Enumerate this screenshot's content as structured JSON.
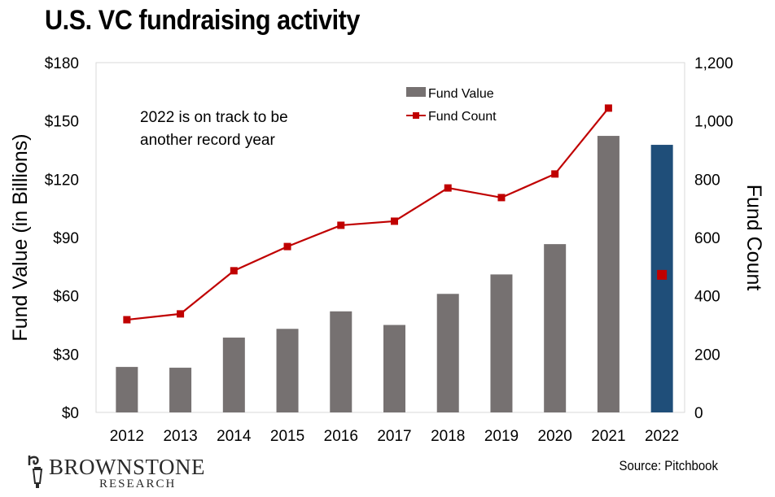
{
  "chart_data": {
    "type": "bar",
    "title": "U.S. VC fundraising activity",
    "categories": [
      "2012",
      "2013",
      "2014",
      "2015",
      "2016",
      "2017",
      "2018",
      "2019",
      "2020",
      "2021",
      "2022"
    ],
    "series": [
      {
        "name": "Fund Value",
        "type": "bar",
        "axis": "left",
        "color": "#767171",
        "highlight": {
          "category": "2022",
          "color": "#1f4e79"
        },
        "values": [
          23.4,
          23,
          38.5,
          43,
          52,
          45,
          61,
          71,
          86.6,
          142.3,
          137.7
        ]
      },
      {
        "name": "Fund Count",
        "type": "line",
        "axis": "right",
        "color": "#c00000",
        "marker": "square",
        "values": [
          318,
          338,
          486,
          569,
          642,
          656,
          770,
          737,
          818,
          1044,
          472
        ],
        "connected_through_category": "2021"
      }
    ],
    "left_axis": {
      "label": "Fund Value (in Billions)",
      "range": [
        0,
        180
      ],
      "ticks": [
        0,
        30,
        60,
        90,
        120,
        150,
        180
      ],
      "tick_labels": [
        "$0",
        "$30",
        "$60",
        "$90",
        "$120",
        "$150",
        "$180"
      ]
    },
    "right_axis": {
      "label": "Fund Count",
      "range": [
        0,
        1200
      ],
      "ticks": [
        0,
        200,
        400,
        600,
        800,
        1000,
        1200
      ],
      "tick_labels": [
        "0",
        "200",
        "400",
        "600",
        "800",
        "1,000",
        "1,200"
      ]
    },
    "grid": false,
    "legend": {
      "position": "top-center",
      "entries": [
        "Fund Value",
        "Fund Count"
      ]
    },
    "annotation": "2022 is on track to be another record year"
  },
  "annotation_lines": [
    "2022 is on track to be",
    "another record year"
  ],
  "footer": {
    "source": "Source: Pitchbook",
    "logo_main": "BROWNSTONE",
    "logo_sub": "RESEARCH"
  }
}
